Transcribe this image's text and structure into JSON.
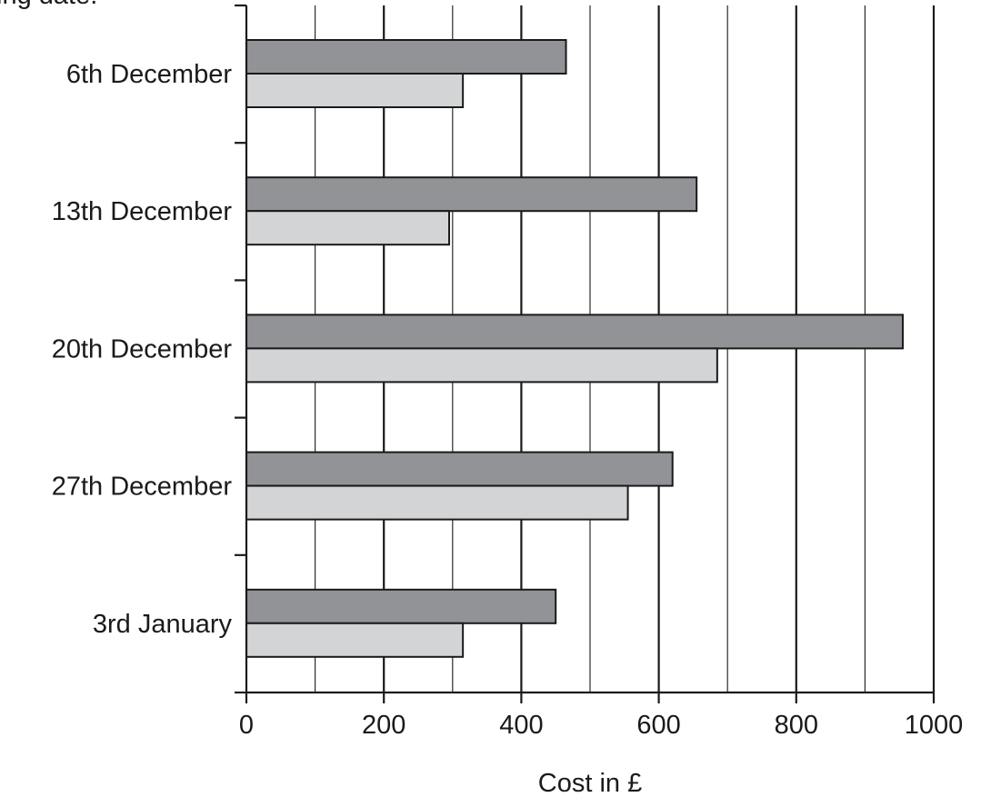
{
  "chart_data": {
    "type": "bar",
    "orientation": "horizontal",
    "title_fragment": "ing date.",
    "categories": [
      "6th December",
      "13th December",
      "20th December",
      "27th December",
      "3rd January"
    ],
    "series": [
      {
        "values": [
          465,
          655,
          955,
          620,
          450
        ],
        "color": "#929396"
      },
      {
        "values": [
          315,
          295,
          685,
          555,
          315
        ],
        "color": "#d3d4d6"
      }
    ],
    "xlabel": "Cost in £",
    "ylabel": "",
    "xlim": [
      0,
      1000
    ],
    "x_ticks": [
      0,
      200,
      400,
      600,
      800,
      1000
    ],
    "minor_gridlines": [
      100,
      300,
      500,
      700,
      900
    ],
    "grid": true
  }
}
